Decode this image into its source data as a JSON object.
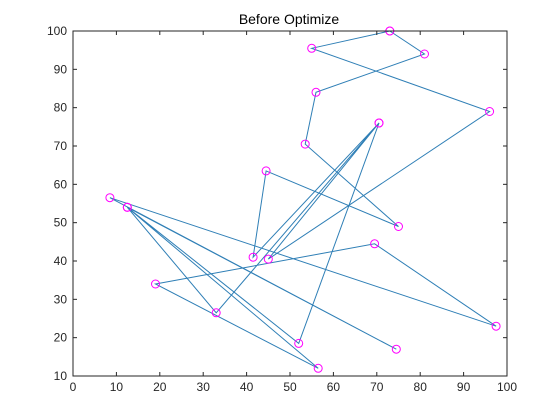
{
  "chart_data": {
    "type": "line",
    "title": "Before Optimize",
    "xlabel": "",
    "ylabel": "",
    "xlim": [
      0,
      100
    ],
    "ylim": [
      10,
      100
    ],
    "xticks": [
      0,
      10,
      20,
      30,
      40,
      50,
      60,
      70,
      80,
      90,
      100
    ],
    "yticks": [
      10,
      20,
      30,
      40,
      50,
      60,
      70,
      80,
      90,
      100
    ],
    "grid": false,
    "line_color": "#2f7fb6",
    "marker_color": "#ff00ff",
    "marker": "circle",
    "series": [
      {
        "x": [
          73,
          81,
          56,
          53.5,
          75,
          44.5,
          41.5,
          70.5,
          33,
          12.5,
          56.5,
          19,
          69.5,
          97.5,
          8.5,
          74.5,
          12.5,
          52,
          70.5,
          45,
          96,
          55,
          73
        ],
        "y": [
          100,
          94,
          84,
          70.5,
          49,
          63.5,
          41,
          76,
          26.5,
          54,
          12,
          34,
          44.5,
          23,
          56.5,
          17,
          54,
          18.5,
          76,
          40.5,
          79,
          95.5,
          100
        ]
      }
    ]
  }
}
